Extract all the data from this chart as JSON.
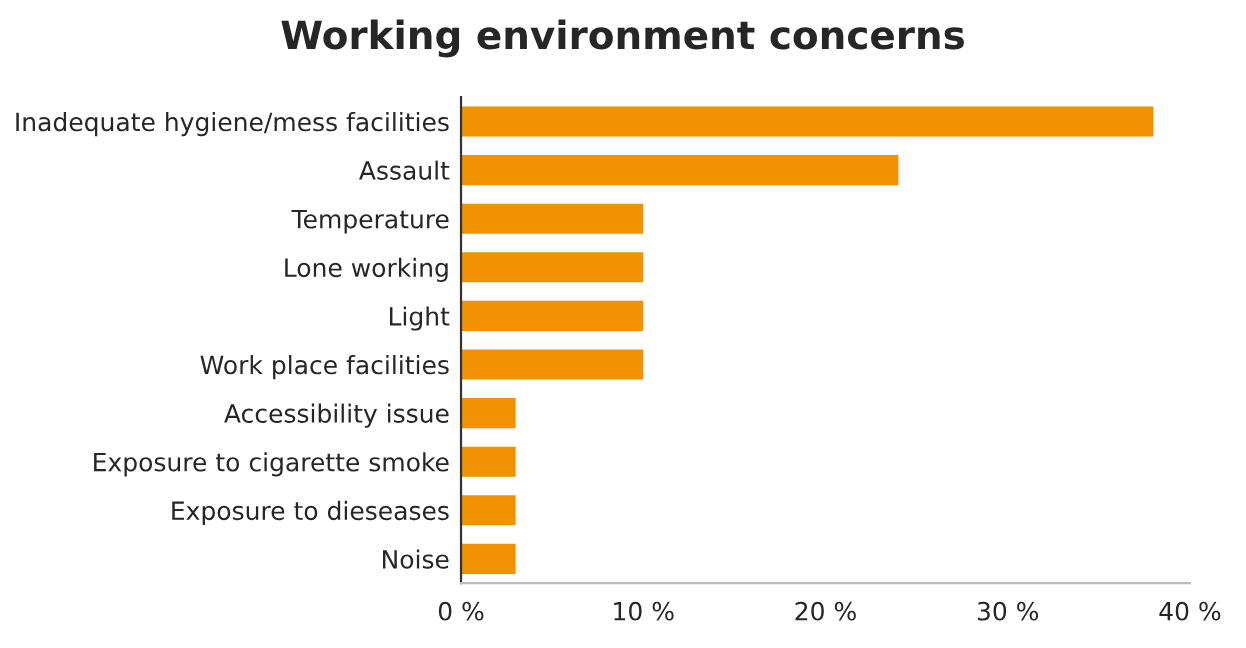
{
  "chart_data": {
    "type": "bar",
    "orientation": "horizontal",
    "title": "Working environment concerns",
    "categories": [
      "Inadequate hygiene/mess facilities",
      "Assault",
      "Temperature",
      "Lone working",
      "Light",
      "Work place facilities",
      "Accessibility issue",
      "Exposure to cigarette smoke",
      "Exposure to dieseases",
      "Noise"
    ],
    "values": [
      38,
      24,
      10,
      10,
      10,
      10,
      3,
      3,
      3,
      3
    ],
    "color": "#f39200",
    "xlim": [
      0,
      40
    ],
    "xticks": [
      {
        "value": 0,
        "label": "0 %"
      },
      {
        "value": 10,
        "label": "10 %"
      },
      {
        "value": 20,
        "label": "20 %"
      },
      {
        "value": 30,
        "label": "30 %"
      },
      {
        "value": 40,
        "label": "40 %"
      }
    ],
    "grid": false,
    "legend": false
  }
}
